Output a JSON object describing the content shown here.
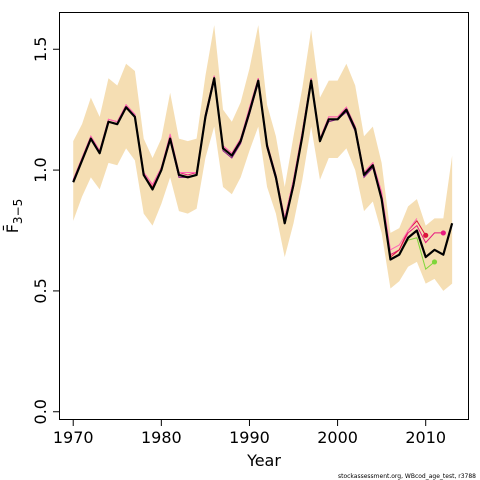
{
  "chart_data": {
    "type": "line",
    "title": "",
    "xlabel": "Year",
    "ylabel": "F̄ 3−5",
    "xlim": [
      1968.5,
      2014.8
    ],
    "ylim": [
      -0.03,
      1.65
    ],
    "xticks": [
      1970,
      1980,
      1990,
      2000,
      2010
    ],
    "yticks": [
      0.0,
      0.5,
      1.0,
      1.5
    ],
    "ytick_labels": [
      "0.0",
      "0.5",
      "1.0",
      "1.5"
    ],
    "grid": false,
    "legend": "none",
    "credit": "stockassessment.org, WBcod_age_test, r3788",
    "colors": {
      "band": "#f5deb3",
      "main": "#000000",
      "retro": [
        "#e6197f",
        "#dc143c",
        "#ff69b4",
        "#8b1a8b",
        "#7fd63a"
      ]
    },
    "x": [
      1970,
      1971,
      1972,
      1973,
      1974,
      1975,
      1976,
      1977,
      1978,
      1979,
      1980,
      1981,
      1982,
      1983,
      1984,
      1985,
      1986,
      1987,
      1988,
      1989,
      1990,
      1991,
      1992,
      1993,
      1994,
      1995,
      1996,
      1997,
      1998,
      1999,
      2000,
      2001,
      2002,
      2003,
      2004,
      2005,
      2006,
      2007,
      2008,
      2009,
      2010,
      2011,
      2012,
      2013
    ],
    "estimate": [
      0.95,
      1.04,
      1.13,
      1.07,
      1.2,
      1.19,
      1.26,
      1.22,
      0.98,
      0.92,
      1.0,
      1.13,
      0.98,
      0.97,
      0.98,
      1.22,
      1.38,
      1.09,
      1.06,
      1.12,
      1.24,
      1.37,
      1.1,
      0.97,
      0.78,
      0.94,
      1.14,
      1.37,
      1.12,
      1.21,
      1.21,
      1.25,
      1.17,
      0.98,
      1.02,
      0.88,
      0.63,
      0.65,
      0.72,
      0.75,
      0.64,
      0.67,
      0.65,
      0.78
    ],
    "band_upper": [
      1.12,
      1.19,
      1.3,
      1.22,
      1.38,
      1.35,
      1.44,
      1.41,
      1.13,
      1.05,
      1.13,
      1.32,
      1.13,
      1.12,
      1.13,
      1.39,
      1.6,
      1.25,
      1.2,
      1.28,
      1.42,
      1.6,
      1.27,
      1.14,
      0.93,
      1.14,
      1.34,
      1.58,
      1.3,
      1.37,
      1.37,
      1.44,
      1.35,
      1.14,
      1.18,
      1.03,
      0.74,
      0.76,
      0.85,
      0.88,
      0.77,
      0.8,
      0.8,
      1.06
    ],
    "band_lower": [
      0.79,
      0.89,
      0.97,
      0.92,
      1.03,
      1.02,
      1.09,
      1.04,
      0.82,
      0.77,
      0.86,
      0.97,
      0.83,
      0.82,
      0.84,
      1.05,
      1.18,
      0.93,
      0.9,
      0.97,
      1.08,
      1.18,
      0.93,
      0.82,
      0.64,
      0.78,
      0.96,
      1.18,
      0.96,
      1.05,
      1.05,
      1.09,
      1.0,
      0.83,
      0.87,
      0.74,
      0.51,
      0.54,
      0.6,
      0.62,
      0.53,
      0.55,
      0.5,
      0.53
    ],
    "retro_series": [
      {
        "x": [
          1970,
          1971,
          1972,
          1973,
          1974,
          1975,
          1976,
          1977,
          1978,
          1979,
          1980,
          1981,
          1982,
          1983,
          1984,
          1985,
          1986,
          1987,
          1988,
          1989,
          1990,
          1991,
          1992,
          1993,
          1994,
          1995,
          1996,
          1997,
          1998,
          1999,
          2000,
          2001,
          2002,
          2003,
          2004,
          2005,
          2006,
          2007,
          2008,
          2009,
          2010,
          2011,
          2012
        ],
        "y": [
          0.96,
          1.05,
          1.14,
          1.08,
          1.21,
          1.2,
          1.27,
          1.23,
          0.99,
          0.94,
          1.01,
          1.14,
          0.99,
          0.98,
          0.99,
          1.23,
          1.39,
          1.1,
          1.07,
          1.13,
          1.25,
          1.38,
          1.11,
          0.98,
          0.8,
          0.96,
          1.16,
          1.38,
          1.13,
          1.22,
          1.22,
          1.26,
          1.18,
          0.99,
          1.03,
          0.9,
          0.65,
          0.67,
          0.74,
          0.77,
          0.7,
          0.74,
          0.74
        ],
        "end_marker": true
      },
      {
        "x": [
          1970,
          1971,
          1972,
          1973,
          1974,
          1975,
          1976,
          1977,
          1978,
          1979,
          1980,
          1981,
          1982,
          1983,
          1984,
          1985,
          1986,
          1987,
          1988,
          1989,
          1990,
          1991,
          1992,
          1993,
          1994,
          1995,
          1996,
          1997,
          1998,
          1999,
          2000,
          2001,
          2002,
          2003,
          2004,
          2005,
          2006,
          2007,
          2008,
          2009,
          2010
        ],
        "y": [
          0.95,
          1.04,
          1.13,
          1.07,
          1.2,
          1.19,
          1.26,
          1.22,
          0.98,
          0.93,
          1.0,
          1.13,
          0.98,
          0.97,
          0.98,
          1.22,
          1.38,
          1.09,
          1.06,
          1.12,
          1.24,
          1.37,
          1.1,
          0.97,
          0.79,
          0.95,
          1.15,
          1.37,
          1.12,
          1.21,
          1.21,
          1.25,
          1.17,
          0.98,
          1.02,
          0.89,
          0.64,
          0.67,
          0.75,
          0.79,
          0.73
        ],
        "end_marker": true
      },
      {
        "x": [
          1970,
          1971,
          1972,
          1973,
          1974,
          1975,
          1976,
          1977,
          1978,
          1979,
          1980,
          1981,
          1982,
          1983,
          1984,
          1985,
          1986,
          1987,
          1988,
          1989,
          1990,
          1991,
          1992,
          1993,
          1994,
          1995,
          1996,
          1997,
          1998,
          1999,
          2000,
          2001,
          2002,
          2003,
          2004,
          2005,
          2006,
          2007,
          2008,
          2009
        ],
        "y": [
          0.96,
          1.05,
          1.14,
          1.08,
          1.21,
          1.2,
          1.27,
          1.23,
          0.99,
          0.94,
          1.01,
          1.15,
          0.99,
          0.99,
          0.99,
          1.23,
          1.39,
          1.1,
          1.07,
          1.13,
          1.26,
          1.38,
          1.11,
          0.98,
          0.8,
          0.96,
          1.16,
          1.38,
          1.13,
          1.22,
          1.22,
          1.26,
          1.18,
          0.99,
          1.03,
          0.91,
          0.67,
          0.69,
          0.75,
          0.8
        ],
        "end_marker": false
      },
      {
        "x": [
          1970,
          1971,
          1972,
          1973,
          1974,
          1975,
          1976,
          1977,
          1978,
          1979,
          1980,
          1981,
          1982,
          1983,
          1984,
          1985,
          1986,
          1987,
          1988,
          1989,
          1990,
          1991,
          1992,
          1993,
          1994,
          1995,
          1996,
          1997,
          1998,
          1999,
          2000,
          2001,
          2002,
          2003,
          2004,
          2005,
          2006,
          2007,
          2008
        ],
        "y": [
          0.95,
          1.04,
          1.13,
          1.07,
          1.2,
          1.19,
          1.26,
          1.22,
          0.98,
          0.92,
          1.0,
          1.12,
          0.97,
          0.97,
          0.98,
          1.21,
          1.37,
          1.08,
          1.05,
          1.11,
          1.23,
          1.36,
          1.09,
          0.96,
          0.78,
          0.93,
          1.14,
          1.36,
          1.12,
          1.2,
          1.21,
          1.24,
          1.16,
          0.97,
          1.01,
          0.88,
          0.63,
          0.65,
          0.72
        ],
        "end_marker": false
      },
      {
        "x": [
          1970,
          1971,
          1972,
          1973,
          1974,
          1975,
          1976,
          1977,
          1978,
          1979,
          1980,
          1981,
          1982,
          1983,
          1984,
          1985,
          1986,
          1987,
          1988,
          1989,
          1990,
          1991,
          1992,
          1993,
          1994,
          1995,
          1996,
          1997,
          1998,
          1999,
          2000,
          2001,
          2002,
          2003,
          2004,
          2005,
          2006,
          2007,
          2008,
          2009,
          2010,
          2011
        ],
        "y": [
          0.95,
          1.04,
          1.13,
          1.07,
          1.2,
          1.19,
          1.26,
          1.22,
          0.98,
          0.92,
          1.0,
          1.13,
          0.98,
          0.97,
          0.98,
          1.22,
          1.38,
          1.09,
          1.06,
          1.12,
          1.24,
          1.37,
          1.1,
          0.97,
          0.78,
          0.94,
          1.14,
          1.37,
          1.12,
          1.21,
          1.21,
          1.25,
          1.17,
          0.98,
          1.02,
          0.88,
          0.63,
          0.65,
          0.71,
          0.72,
          0.59,
          0.62
        ],
        "end_marker": true
      }
    ]
  }
}
